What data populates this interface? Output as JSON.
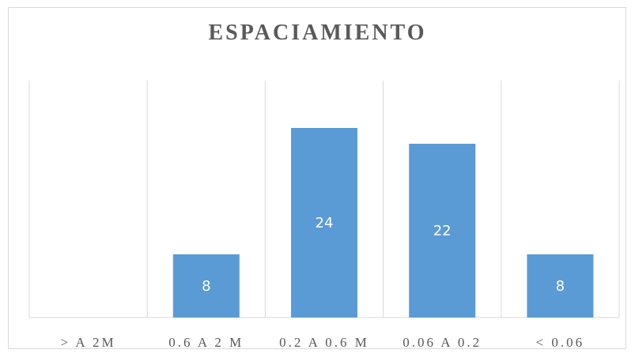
{
  "chart_data": {
    "type": "bar",
    "title": "ESPACIAMIENTO",
    "categories": [
      "> A 2M",
      "0.6 A 2 M",
      "0.2 A 0.6 M",
      "0.06 A 0.2",
      "< 0.06"
    ],
    "values": [
      0,
      8,
      24,
      22,
      8
    ],
    "data_labels": [
      "",
      "8",
      "24",
      "22",
      "8"
    ],
    "ylim": [
      0,
      30
    ],
    "grid": "vertical",
    "legend": "none",
    "colors": {
      "bar": "#5b9bd5",
      "grid": "#d9d9d9",
      "text": "#595959"
    }
  }
}
